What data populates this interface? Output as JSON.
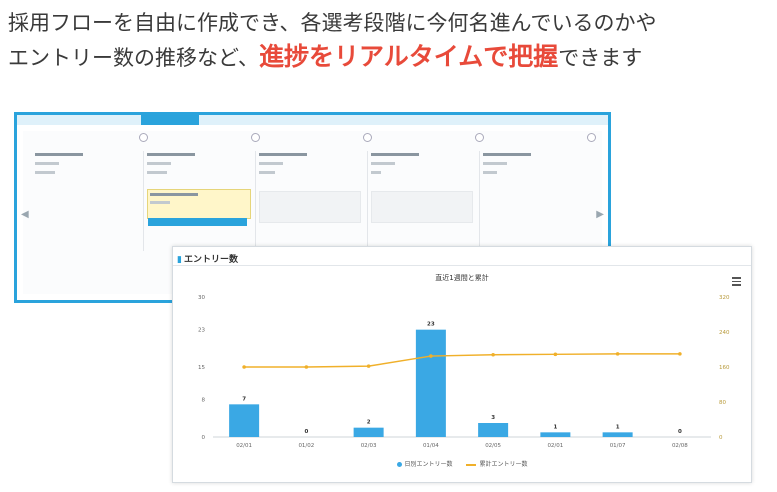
{
  "headline": {
    "line1": "採用フローを自由に作成でき、各選考段階に今何名進んでいるのかや",
    "line2_prefix": "エントリー数の推移など、",
    "line2_accent": "進捗をリアルタイムで把握",
    "line2_suffix": "できます"
  },
  "colors": {
    "accent": "#e84a3a",
    "brand": "#2aa3dc",
    "bar": "#3aa8e4",
    "line": "#f0b02a"
  },
  "entry_panel": {
    "title": "エントリー数",
    "icon": "bar-chart-icon",
    "menu_icon": "hamburger-menu-icon"
  },
  "chart_data": {
    "type": "bar",
    "title": "直近1週間と累計",
    "categories": [
      "02/01",
      "01/02",
      "02/03",
      "01/04",
      "02/05",
      "02/01",
      "01/07",
      "02/08"
    ],
    "series": [
      {
        "name": "日別エントリー数",
        "type": "bar",
        "axis": "left",
        "values": [
          7,
          0,
          2,
          23,
          3,
          1,
          1,
          0
        ]
      },
      {
        "name": "累計エントリー数",
        "type": "line",
        "axis": "right",
        "values": [
          160,
          160,
          162,
          185,
          188,
          189,
          190,
          190
        ]
      }
    ],
    "ylim_left": [
      0,
      30
    ],
    "yticks_left": [
      "0",
      "8",
      "15",
      "23",
      "30"
    ],
    "ylim_right": [
      0,
      320
    ],
    "yticks_right": [
      "0",
      "80",
      "160",
      "240",
      "320"
    ],
    "bar_labels": [
      "7",
      "0",
      "2",
      "23",
      "3",
      "1",
      "1",
      "0"
    ],
    "legend_position": "bottom-center",
    "grid": false
  }
}
